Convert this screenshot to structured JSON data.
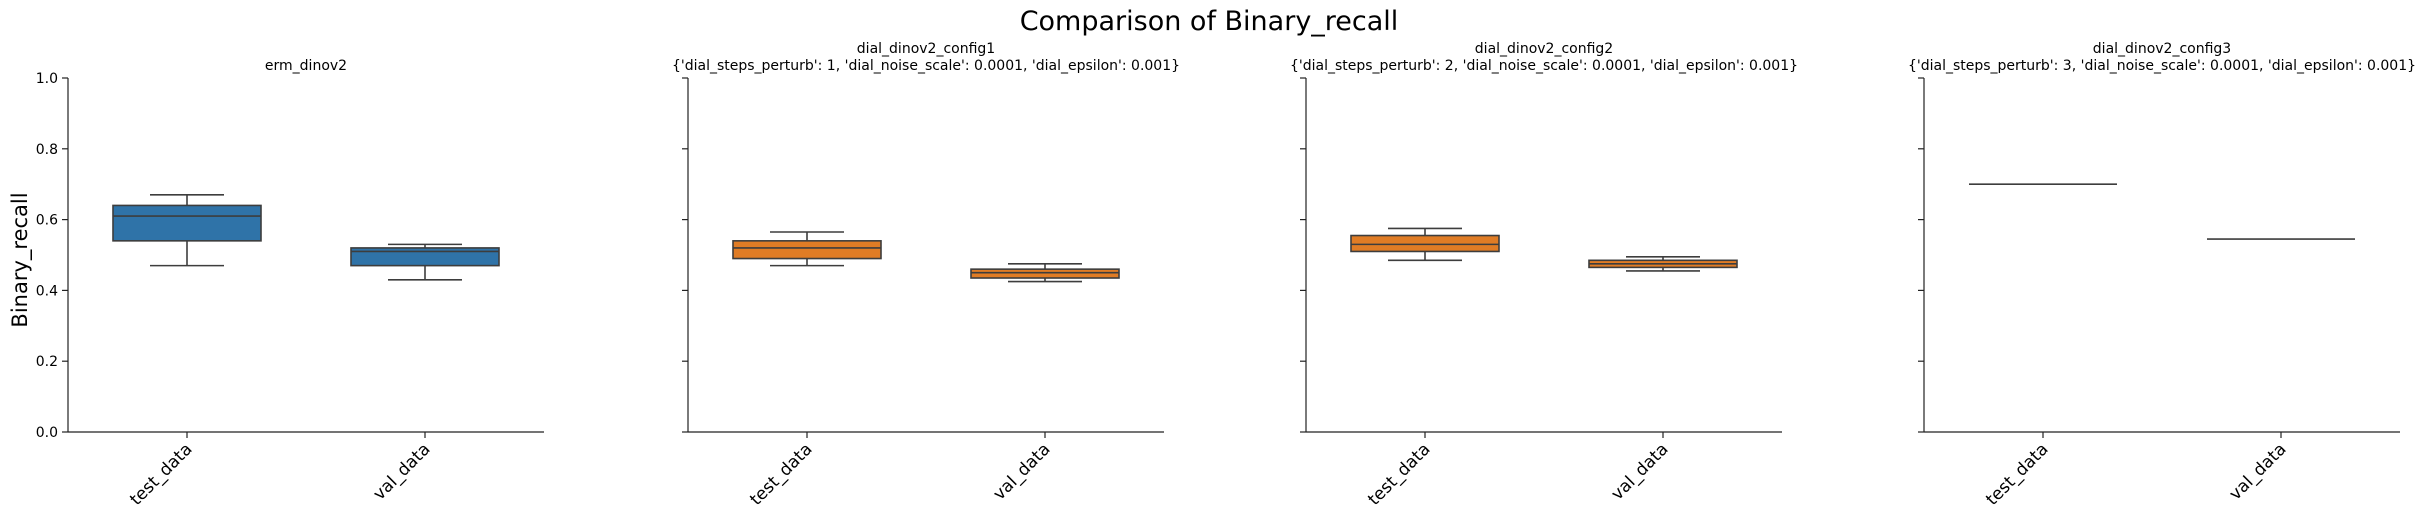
{
  "figure": {
    "title": "Comparison of Binary_recall",
    "ylabel": "Binary_recall"
  },
  "colors": {
    "erm": "#2f73a8",
    "dial": "#e07c25",
    "line": "#3d3d3d",
    "axis": "#222222"
  },
  "chart_data": [
    {
      "type": "box",
      "title_line1": "erm_dinov2",
      "title_line2": "",
      "color": "#2f73a8",
      "categories": [
        "test_data",
        "val_data"
      ],
      "ylim": [
        0,
        1
      ],
      "yticks": [
        "0.0",
        "0.2",
        "0.4",
        "0.6",
        "0.8",
        "1.0"
      ],
      "show_ytick_labels": true,
      "boxes": [
        {
          "category": "test_data",
          "whisker_low": 0.47,
          "q1": 0.54,
          "median": 0.61,
          "q3": 0.64,
          "whisker_high": 0.67
        },
        {
          "category": "val_data",
          "whisker_low": 0.43,
          "q1": 0.47,
          "median": 0.51,
          "q3": 0.52,
          "whisker_high": 0.53
        }
      ]
    },
    {
      "type": "box",
      "title_line1": "dial_dinov2_config1",
      "title_line2": "{'dial_steps_perturb': 1, 'dial_noise_scale': 0.0001, 'dial_epsilon': 0.001}",
      "color": "#e07c25",
      "categories": [
        "test_data",
        "val_data"
      ],
      "ylim": [
        0,
        1
      ],
      "yticks": [
        "0.0",
        "0.2",
        "0.4",
        "0.6",
        "0.8",
        "1.0"
      ],
      "show_ytick_labels": false,
      "boxes": [
        {
          "category": "test_data",
          "whisker_low": 0.47,
          "q1": 0.49,
          "median": 0.52,
          "q3": 0.54,
          "whisker_high": 0.565
        },
        {
          "category": "val_data",
          "whisker_low": 0.425,
          "q1": 0.435,
          "median": 0.45,
          "q3": 0.46,
          "whisker_high": 0.475
        }
      ]
    },
    {
      "type": "box",
      "title_line1": "dial_dinov2_config2",
      "title_line2": "{'dial_steps_perturb': 2, 'dial_noise_scale': 0.0001, 'dial_epsilon': 0.001}",
      "color": "#e07c25",
      "categories": [
        "test_data",
        "val_data"
      ],
      "ylim": [
        0,
        1
      ],
      "yticks": [
        "0.0",
        "0.2",
        "0.4",
        "0.6",
        "0.8",
        "1.0"
      ],
      "show_ytick_labels": false,
      "boxes": [
        {
          "category": "test_data",
          "whisker_low": 0.485,
          "q1": 0.51,
          "median": 0.53,
          "q3": 0.555,
          "whisker_high": 0.575
        },
        {
          "category": "val_data",
          "whisker_low": 0.455,
          "q1": 0.465,
          "median": 0.475,
          "q3": 0.485,
          "whisker_high": 0.495
        }
      ]
    },
    {
      "type": "box",
      "title_line1": "dial_dinov2_config3",
      "title_line2": "{'dial_steps_perturb': 3, 'dial_noise_scale': 0.0001, 'dial_epsilon': 0.001}",
      "color": "#e07c25",
      "categories": [
        "test_data",
        "val_data"
      ],
      "ylim": [
        0,
        1
      ],
      "yticks": [
        "0.0",
        "0.2",
        "0.4",
        "0.6",
        "0.8",
        "1.0"
      ],
      "show_ytick_labels": false,
      "boxes": [
        {
          "category": "test_data",
          "whisker_low": 0.7,
          "q1": 0.7,
          "median": 0.7,
          "q3": 0.7,
          "whisker_high": 0.7
        },
        {
          "category": "val_data",
          "whisker_low": 0.545,
          "q1": 0.545,
          "median": 0.545,
          "q3": 0.545,
          "whisker_high": 0.545
        }
      ]
    }
  ]
}
